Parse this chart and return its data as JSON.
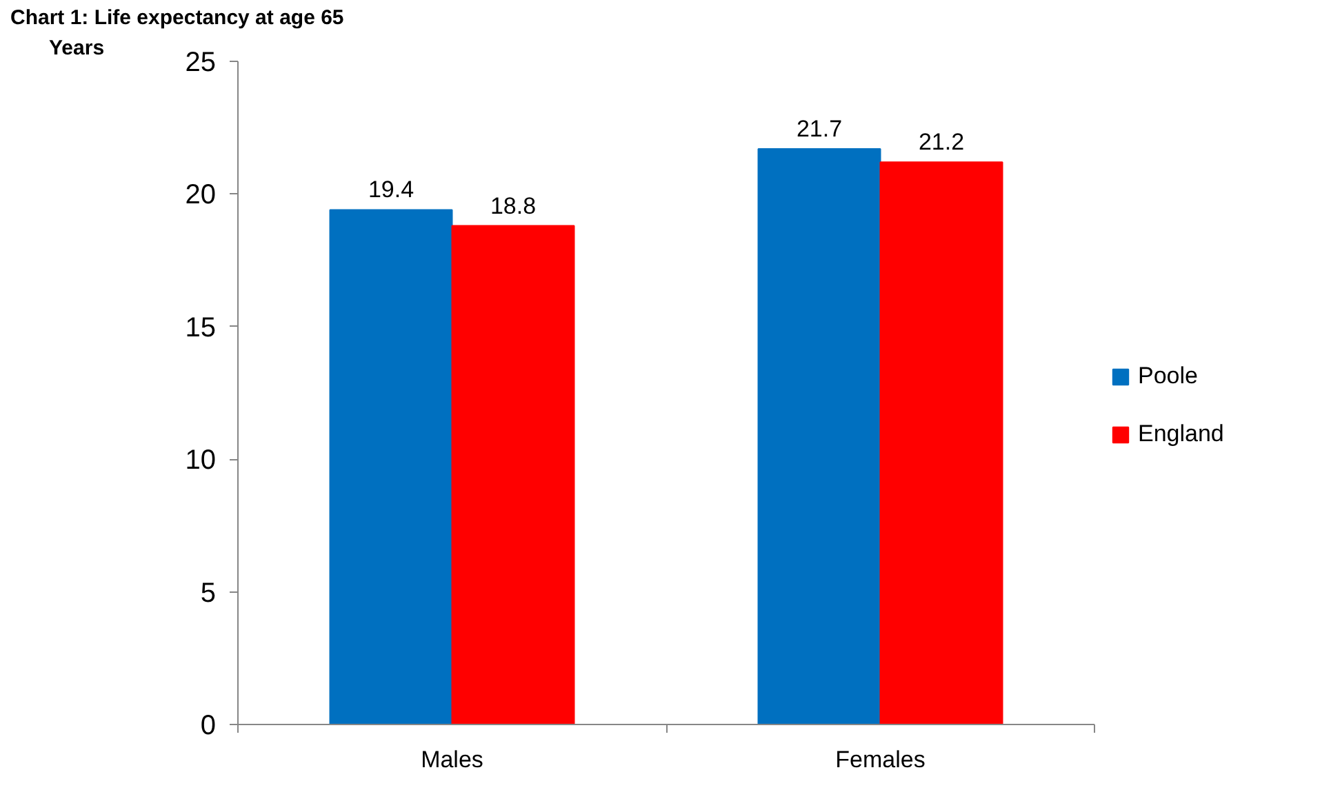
{
  "chart_data": {
    "type": "bar",
    "title": "Chart 1: Life expectancy at age 65",
    "ylabel": "Years",
    "categories": [
      "Males",
      "Females"
    ],
    "series": [
      {
        "name": "Poole",
        "color": "#0070c0",
        "values": [
          19.4,
          21.7
        ]
      },
      {
        "name": "England",
        "color": "#ff0000",
        "values": [
          18.8,
          21.2
        ]
      }
    ],
    "ylim": [
      0,
      25
    ],
    "yticks": [
      0,
      5,
      10,
      15,
      20,
      25
    ],
    "grid": false,
    "legend": "right",
    "data_labels": true
  }
}
